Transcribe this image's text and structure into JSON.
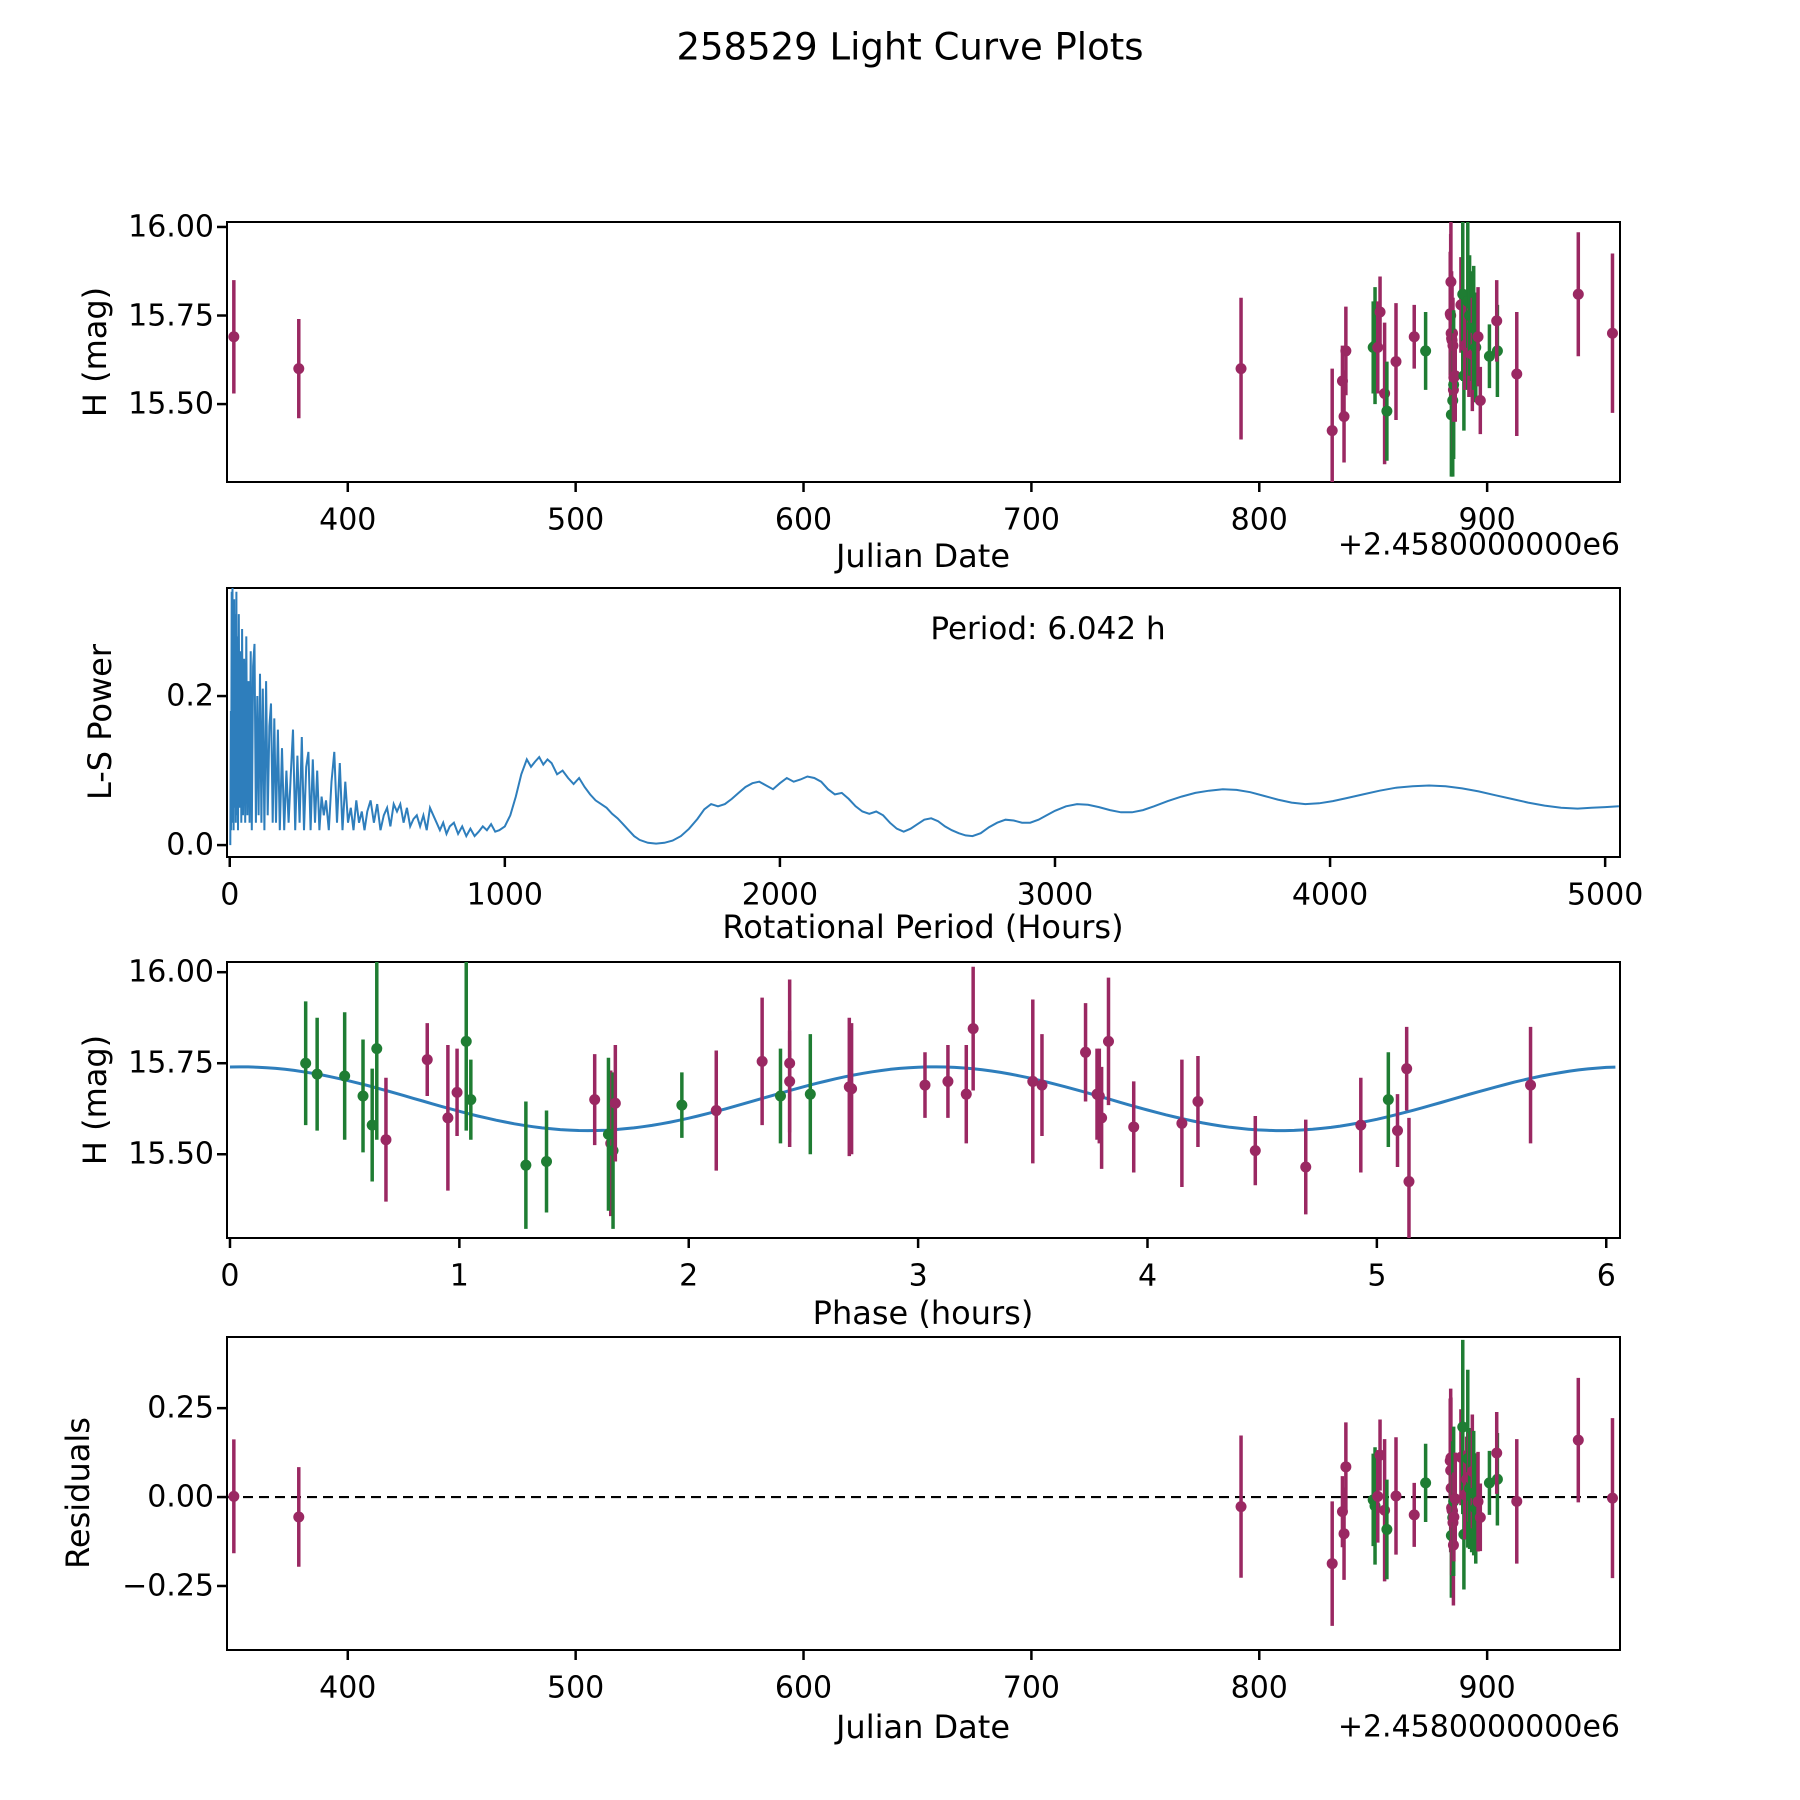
{
  "title": "258529 Light Curve Plots",
  "colors": {
    "purple": "#9a2862",
    "green": "#1f7d33",
    "blue": "#2e7ebc",
    "frame": "#000000"
  },
  "panels": {
    "jd_mag": {
      "xlabel": "Julian Date",
      "ylabel": "H (mag)",
      "offset_text": "+2.4580000000e6",
      "xlim": [
        347,
        958.3
      ],
      "ylim": [
        15.28,
        16.014
      ],
      "xticks": {
        "values": [
          400,
          500,
          600,
          700,
          800,
          900
        ],
        "labels": [
          "400",
          "500",
          "600",
          "700",
          "800",
          "900"
        ]
      },
      "yticks": {
        "values": [
          16.0,
          15.75,
          15.5
        ],
        "labels": [
          "16.00",
          "15.75",
          "15.50"
        ]
      }
    },
    "periodogram": {
      "xlabel": "Rotational Period (Hours)",
      "ylabel": "L-S Power",
      "annotation": "Period: 6.042 h",
      "xlim": [
        -10,
        5054
      ],
      "ylim": [
        -0.016,
        0.345
      ],
      "xticks": {
        "values": [
          0,
          1000,
          2000,
          3000,
          4000,
          5000
        ],
        "labels": [
          "0",
          "1000",
          "2000",
          "3000",
          "4000",
          "5000"
        ]
      },
      "yticks": {
        "values": [
          0.0,
          0.2
        ],
        "labels": [
          "0.0",
          "0.2"
        ]
      }
    },
    "phase": {
      "xlabel": "Phase (hours)",
      "ylabel": "H (mag)",
      "xlim": [
        -0.013,
        6.06
      ],
      "ylim": [
        15.27,
        16.028
      ],
      "xticks": {
        "values": [
          0,
          1,
          2,
          3,
          4,
          5,
          6
        ],
        "labels": [
          "0",
          "1",
          "2",
          "3",
          "4",
          "5",
          "6"
        ]
      },
      "yticks": {
        "values": [
          16.0,
          15.75,
          15.5
        ],
        "labels": [
          "16.00",
          "15.75",
          "15.50"
        ]
      }
    },
    "residuals": {
      "xlabel": "Julian Date",
      "ylabel": "Residuals",
      "offset_text": "+2.4580000000e6",
      "xlim": [
        347,
        958.3
      ],
      "ylim": [
        -0.43,
        0.45
      ],
      "xticks": {
        "values": [
          400,
          500,
          600,
          700,
          800,
          900
        ],
        "labels": [
          "400",
          "500",
          "600",
          "700",
          "800",
          "900"
        ]
      },
      "yticks": {
        "values": [
          0.25,
          0.0,
          -0.25
        ],
        "labels": [
          "0.25",
          "0.00",
          "−0.25"
        ]
      },
      "zero_line": 0.0
    }
  },
  "chart_data": {
    "type": "multi-panel",
    "period_hours": 6.042,
    "points_fields": [
      "jd_minus_2458000",
      "phase_hours",
      "H_mag",
      "err_mag",
      "residual_mag",
      "color"
    ],
    "points": [
      [
        350.0,
        5.67,
        15.69,
        0.16,
        0.002,
        "p"
      ],
      [
        378.5,
        3.8,
        15.6,
        0.14,
        -0.056,
        "p"
      ],
      [
        792.0,
        0.95,
        15.6,
        0.2,
        -0.027,
        "p"
      ],
      [
        832.0,
        5.14,
        15.425,
        0.175,
        -0.187,
        "p"
      ],
      [
        836.5,
        5.09,
        15.565,
        0.1,
        -0.041,
        "p"
      ],
      [
        837.2,
        4.69,
        15.465,
        0.13,
        -0.103,
        "p"
      ],
      [
        838.0,
        1.59,
        15.65,
        0.125,
        0.085,
        "p"
      ],
      [
        850.0,
        2.4,
        15.66,
        0.13,
        -0.008,
        "g"
      ],
      [
        850.8,
        2.53,
        15.665,
        0.165,
        -0.025,
        "g"
      ],
      [
        852.0,
        3.79,
        15.66,
        0.13,
        0.002,
        "p"
      ],
      [
        853.0,
        0.86,
        15.76,
        0.1,
        0.118,
        "p"
      ],
      [
        855.0,
        1.66,
        15.53,
        0.2,
        -0.037,
        "p"
      ],
      [
        856.0,
        1.38,
        15.48,
        0.14,
        -0.091,
        "g"
      ],
      [
        860.0,
        2.12,
        15.62,
        0.165,
        0.003,
        "p"
      ],
      [
        868.0,
        3.03,
        15.69,
        0.09,
        -0.05,
        "p"
      ],
      [
        873.0,
        1.05,
        15.65,
        0.11,
        0.04,
        "g"
      ],
      [
        883.8,
        2.32,
        15.755,
        0.175,
        0.102,
        "p"
      ],
      [
        884.0,
        2.44,
        15.75,
        0.23,
        0.075,
        "p"
      ],
      [
        884.1,
        3.24,
        15.845,
        0.17,
        0.11,
        "p"
      ],
      [
        884.2,
        2.44,
        15.7,
        0.14,
        0.025,
        "p"
      ],
      [
        884.3,
        1.29,
        15.47,
        0.175,
        -0.108,
        "g"
      ],
      [
        884.4,
        2.7,
        15.685,
        0.19,
        -0.03,
        "p"
      ],
      [
        884.6,
        2.71,
        15.68,
        0.18,
        -0.037,
        "p"
      ],
      [
        884.8,
        3.13,
        15.7,
        0.1,
        -0.039,
        "p"
      ],
      [
        884.9,
        1.67,
        15.51,
        0.215,
        -0.058,
        "g"
      ],
      [
        885.0,
        3.21,
        15.665,
        0.135,
        -0.072,
        "p"
      ],
      [
        885.2,
        0.68,
        15.54,
        0.17,
        -0.135,
        "p"
      ],
      [
        885.3,
        1.65,
        15.555,
        0.21,
        -0.012,
        "g"
      ],
      [
        885.4,
        3.94,
        15.575,
        0.125,
        -0.056,
        "p"
      ],
      [
        886.0,
        4.93,
        15.58,
        0.13,
        -0.005,
        "p"
      ],
      [
        888.5,
        3.73,
        15.78,
        0.135,
        0.112,
        "p"
      ],
      [
        889.3,
        1.03,
        15.81,
        0.245,
        0.197,
        "g"
      ],
      [
        889.8,
        0.62,
        15.58,
        0.155,
        -0.105,
        "g"
      ],
      [
        890.2,
        3.78,
        15.665,
        0.125,
        0.006,
        "p"
      ],
      [
        891.0,
        0.99,
        15.67,
        0.12,
        0.05,
        "p"
      ],
      [
        891.5,
        0.64,
        15.79,
        0.25,
        0.108,
        "g"
      ],
      [
        892.0,
        4.22,
        15.645,
        0.125,
        0.056,
        "p"
      ],
      [
        892.3,
        0.33,
        15.75,
        0.17,
        0.024,
        "g"
      ],
      [
        893.2,
        0.38,
        15.72,
        0.155,
        0.0,
        "g"
      ],
      [
        893.5,
        1.68,
        15.64,
        0.16,
        0.072,
        "p"
      ],
      [
        894.1,
        0.5,
        15.715,
        0.175,
        0.011,
        "g"
      ],
      [
        895.0,
        0.58,
        15.66,
        0.155,
        -0.032,
        "g"
      ],
      [
        896.0,
        3.54,
        15.69,
        0.14,
        -0.013,
        "p"
      ],
      [
        897.0,
        4.47,
        15.51,
        0.095,
        -0.057,
        "p"
      ],
      [
        901.0,
        1.97,
        15.635,
        0.09,
        0.04,
        "g"
      ],
      [
        904.5,
        5.05,
        15.65,
        0.13,
        0.05,
        "g"
      ],
      [
        904.2,
        5.13,
        15.735,
        0.115,
        0.124,
        "p"
      ],
      [
        913.0,
        4.15,
        15.585,
        0.175,
        -0.012,
        "p"
      ],
      [
        940.0,
        3.83,
        15.81,
        0.175,
        0.16,
        "p"
      ],
      [
        955.0,
        3.5,
        15.7,
        0.225,
        -0.003,
        "p"
      ]
    ],
    "fit_curve": {
      "mean": 15.6525,
      "amplitude": 0.0875,
      "period": 3.021,
      "phase_shift": 0.05,
      "range": [
        0,
        6.042
      ]
    },
    "periodogram_line": [
      [
        2,
        0.0
      ],
      [
        4,
        0.18
      ],
      [
        5,
        0.02
      ],
      [
        7,
        0.34
      ],
      [
        8,
        0.03
      ],
      [
        10,
        0.355
      ],
      [
        11,
        0.04
      ],
      [
        13,
        0.3
      ],
      [
        14,
        0.02
      ],
      [
        16,
        0.33
      ],
      [
        18,
        0.05
      ],
      [
        20,
        0.31
      ],
      [
        22,
        0.03
      ],
      [
        24,
        0.34
      ],
      [
        26,
        0.04
      ],
      [
        28,
        0.28
      ],
      [
        30,
        0.02
      ],
      [
        33,
        0.31
      ],
      [
        36,
        0.05
      ],
      [
        39,
        0.26
      ],
      [
        42,
        0.03
      ],
      [
        45,
        0.29
      ],
      [
        48,
        0.04
      ],
      [
        52,
        0.25
      ],
      [
        56,
        0.03
      ],
      [
        60,
        0.28
      ],
      [
        64,
        0.04
      ],
      [
        68,
        0.22
      ],
      [
        72,
        0.03
      ],
      [
        76,
        0.26
      ],
      [
        80,
        0.02
      ],
      [
        85,
        0.24
      ],
      [
        90,
        0.27
      ],
      [
        95,
        0.03
      ],
      [
        100,
        0.2
      ],
      [
        105,
        0.04
      ],
      [
        110,
        0.23
      ],
      [
        115,
        0.03
      ],
      [
        120,
        0.21
      ],
      [
        126,
        0.02
      ],
      [
        132,
        0.22
      ],
      [
        138,
        0.04
      ],
      [
        144,
        0.16
      ],
      [
        150,
        0.19
      ],
      [
        156,
        0.03
      ],
      [
        162,
        0.17
      ],
      [
        168,
        0.03
      ],
      [
        175,
        0.155
      ],
      [
        182,
        0.02
      ],
      [
        190,
        0.13
      ],
      [
        198,
        0.02
      ],
      [
        206,
        0.1
      ],
      [
        214,
        0.03
      ],
      [
        222,
        0.095
      ],
      [
        230,
        0.155
      ],
      [
        238,
        0.02
      ],
      [
        246,
        0.12
      ],
      [
        254,
        0.03
      ],
      [
        262,
        0.145
      ],
      [
        270,
        0.02
      ],
      [
        278,
        0.105
      ],
      [
        286,
        0.125
      ],
      [
        294,
        0.02
      ],
      [
        302,
        0.115
      ],
      [
        310,
        0.03
      ],
      [
        318,
        0.1
      ],
      [
        326,
        0.02
      ],
      [
        334,
        0.065
      ],
      [
        342,
        0.04
      ],
      [
        350,
        0.06
      ],
      [
        360,
        0.02
      ],
      [
        370,
        0.085
      ],
      [
        380,
        0.125
      ],
      [
        390,
        0.03
      ],
      [
        400,
        0.11
      ],
      [
        410,
        0.02
      ],
      [
        420,
        0.085
      ],
      [
        430,
        0.03
      ],
      [
        440,
        0.05
      ],
      [
        450,
        0.02
      ],
      [
        460,
        0.06
      ],
      [
        470,
        0.03
      ],
      [
        480,
        0.045
      ],
      [
        490,
        0.02
      ],
      [
        500,
        0.045
      ],
      [
        512,
        0.06
      ],
      [
        524,
        0.03
      ],
      [
        536,
        0.055
      ],
      [
        548,
        0.02
      ],
      [
        560,
        0.04
      ],
      [
        572,
        0.05
      ],
      [
        584,
        0.025
      ],
      [
        596,
        0.055
      ],
      [
        608,
        0.045
      ],
      [
        620,
        0.055
      ],
      [
        632,
        0.03
      ],
      [
        644,
        0.05
      ],
      [
        656,
        0.025
      ],
      [
        668,
        0.035
      ],
      [
        680,
        0.04
      ],
      [
        692,
        0.025
      ],
      [
        704,
        0.04
      ],
      [
        716,
        0.02
      ],
      [
        728,
        0.05
      ],
      [
        740,
        0.04
      ],
      [
        752,
        0.03
      ],
      [
        764,
        0.02
      ],
      [
        776,
        0.03
      ],
      [
        788,
        0.015
      ],
      [
        800,
        0.025
      ],
      [
        815,
        0.03
      ],
      [
        830,
        0.015
      ],
      [
        845,
        0.025
      ],
      [
        860,
        0.012
      ],
      [
        875,
        0.022
      ],
      [
        890,
        0.012
      ],
      [
        905,
        0.018
      ],
      [
        920,
        0.025
      ],
      [
        935,
        0.02
      ],
      [
        950,
        0.028
      ],
      [
        965,
        0.018
      ],
      [
        980,
        0.02
      ],
      [
        1000,
        0.025
      ],
      [
        1020,
        0.04
      ],
      [
        1040,
        0.065
      ],
      [
        1060,
        0.095
      ],
      [
        1080,
        0.115
      ],
      [
        1095,
        0.105
      ],
      [
        1110,
        0.112
      ],
      [
        1125,
        0.118
      ],
      [
        1140,
        0.108
      ],
      [
        1155,
        0.115
      ],
      [
        1170,
        0.11
      ],
      [
        1190,
        0.095
      ],
      [
        1210,
        0.1
      ],
      [
        1230,
        0.09
      ],
      [
        1250,
        0.082
      ],
      [
        1270,
        0.09
      ],
      [
        1290,
        0.078
      ],
      [
        1310,
        0.068
      ],
      [
        1330,
        0.06
      ],
      [
        1350,
        0.055
      ],
      [
        1370,
        0.05
      ],
      [
        1390,
        0.042
      ],
      [
        1410,
        0.036
      ],
      [
        1430,
        0.028
      ],
      [
        1450,
        0.02
      ],
      [
        1470,
        0.012
      ],
      [
        1490,
        0.007
      ],
      [
        1520,
        0.003
      ],
      [
        1550,
        0.002
      ],
      [
        1580,
        0.003
      ],
      [
        1610,
        0.006
      ],
      [
        1640,
        0.012
      ],
      [
        1670,
        0.022
      ],
      [
        1700,
        0.035
      ],
      [
        1725,
        0.048
      ],
      [
        1750,
        0.055
      ],
      [
        1775,
        0.052
      ],
      [
        1800,
        0.055
      ],
      [
        1825,
        0.062
      ],
      [
        1850,
        0.07
      ],
      [
        1875,
        0.078
      ],
      [
        1900,
        0.083
      ],
      [
        1925,
        0.085
      ],
      [
        1950,
        0.08
      ],
      [
        1975,
        0.075
      ],
      [
        2000,
        0.083
      ],
      [
        2025,
        0.09
      ],
      [
        2050,
        0.085
      ],
      [
        2075,
        0.088
      ],
      [
        2100,
        0.092
      ],
      [
        2125,
        0.09
      ],
      [
        2150,
        0.085
      ],
      [
        2175,
        0.075
      ],
      [
        2200,
        0.068
      ],
      [
        2225,
        0.07
      ],
      [
        2250,
        0.062
      ],
      [
        2275,
        0.052
      ],
      [
        2300,
        0.045
      ],
      [
        2325,
        0.042
      ],
      [
        2350,
        0.045
      ],
      [
        2375,
        0.04
      ],
      [
        2400,
        0.03
      ],
      [
        2425,
        0.022
      ],
      [
        2450,
        0.018
      ],
      [
        2475,
        0.022
      ],
      [
        2500,
        0.028
      ],
      [
        2525,
        0.034
      ],
      [
        2550,
        0.036
      ],
      [
        2575,
        0.032
      ],
      [
        2600,
        0.025
      ],
      [
        2625,
        0.02
      ],
      [
        2650,
        0.016
      ],
      [
        2675,
        0.013
      ],
      [
        2700,
        0.012
      ],
      [
        2730,
        0.016
      ],
      [
        2760,
        0.024
      ],
      [
        2790,
        0.03
      ],
      [
        2820,
        0.034
      ],
      [
        2850,
        0.033
      ],
      [
        2880,
        0.03
      ],
      [
        2910,
        0.03
      ],
      [
        2940,
        0.034
      ],
      [
        2970,
        0.04
      ],
      [
        3000,
        0.046
      ],
      [
        3040,
        0.052
      ],
      [
        3080,
        0.055
      ],
      [
        3120,
        0.054
      ],
      [
        3160,
        0.051
      ],
      [
        3200,
        0.047
      ],
      [
        3240,
        0.044
      ],
      [
        3280,
        0.044
      ],
      [
        3320,
        0.047
      ],
      [
        3360,
        0.052
      ],
      [
        3410,
        0.059
      ],
      [
        3460,
        0.065
      ],
      [
        3510,
        0.07
      ],
      [
        3560,
        0.073
      ],
      [
        3610,
        0.075
      ],
      [
        3660,
        0.074
      ],
      [
        3710,
        0.071
      ],
      [
        3760,
        0.066
      ],
      [
        3810,
        0.061
      ],
      [
        3860,
        0.057
      ],
      [
        3910,
        0.055
      ],
      [
        3960,
        0.056
      ],
      [
        4010,
        0.059
      ],
      [
        4060,
        0.063
      ],
      [
        4120,
        0.068
      ],
      [
        4180,
        0.073
      ],
      [
        4240,
        0.077
      ],
      [
        4300,
        0.079
      ],
      [
        4360,
        0.08
      ],
      [
        4420,
        0.079
      ],
      [
        4480,
        0.076
      ],
      [
        4540,
        0.072
      ],
      [
        4600,
        0.067
      ],
      [
        4660,
        0.062
      ],
      [
        4720,
        0.057
      ],
      [
        4780,
        0.053
      ],
      [
        4840,
        0.05
      ],
      [
        4900,
        0.049
      ],
      [
        4950,
        0.05
      ],
      [
        5000,
        0.051
      ],
      [
        5050,
        0.052
      ]
    ]
  }
}
